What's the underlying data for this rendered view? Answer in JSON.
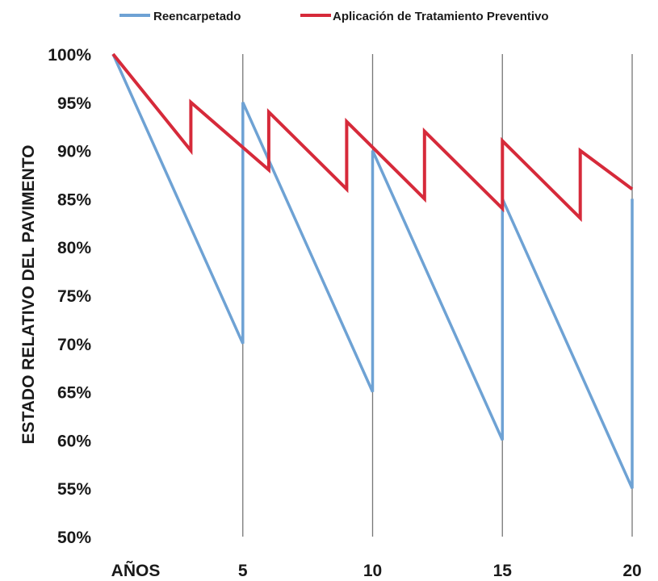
{
  "chart_data": {
    "type": "line",
    "title": "",
    "xlabel": "",
    "ylabel": "ESTADO RELATIVO DEL PAVIMENTO",
    "x_first_label": "AÑOS",
    "xlim": [
      0,
      20
    ],
    "ylim": [
      50,
      100
    ],
    "x_ticks": [
      5,
      10,
      15,
      20
    ],
    "y_ticks": [
      {
        "value": 100,
        "label": "100%"
      },
      {
        "value": 95,
        "label": "95%"
      },
      {
        "value": 90,
        "label": "90%"
      },
      {
        "value": 85,
        "label": "85%"
      },
      {
        "value": 80,
        "label": "80%"
      },
      {
        "value": 75,
        "label": "75%"
      },
      {
        "value": 70,
        "label": "70%"
      },
      {
        "value": 65,
        "label": "65%"
      },
      {
        "value": 60,
        "label": "60%"
      },
      {
        "value": 55,
        "label": "55%"
      },
      {
        "value": 50,
        "label": "50%"
      }
    ],
    "vertical_grid": true,
    "horizontal_grid": false,
    "legend_position": "top",
    "series": [
      {
        "name": "Reencarpetado",
        "color": "#6ea2d4",
        "points": [
          [
            0,
            100
          ],
          [
            5,
            70
          ],
          [
            5,
            95
          ],
          [
            10,
            65
          ],
          [
            10,
            90
          ],
          [
            15,
            60
          ],
          [
            15,
            85
          ],
          [
            20,
            55
          ],
          [
            20,
            85
          ]
        ]
      },
      {
        "name": "Aplicación de Tratamiento Preventivo",
        "color": "#d62a3a",
        "points": [
          [
            0,
            100
          ],
          [
            3,
            90
          ],
          [
            3,
            95
          ],
          [
            6,
            88
          ],
          [
            6,
            94
          ],
          [
            9,
            86
          ],
          [
            9,
            93
          ],
          [
            12,
            85
          ],
          [
            12,
            92
          ],
          [
            15,
            84
          ],
          [
            15,
            91
          ],
          [
            18,
            83
          ],
          [
            18,
            90
          ],
          [
            20,
            86
          ]
        ]
      }
    ],
    "grid_color": "#777777"
  }
}
